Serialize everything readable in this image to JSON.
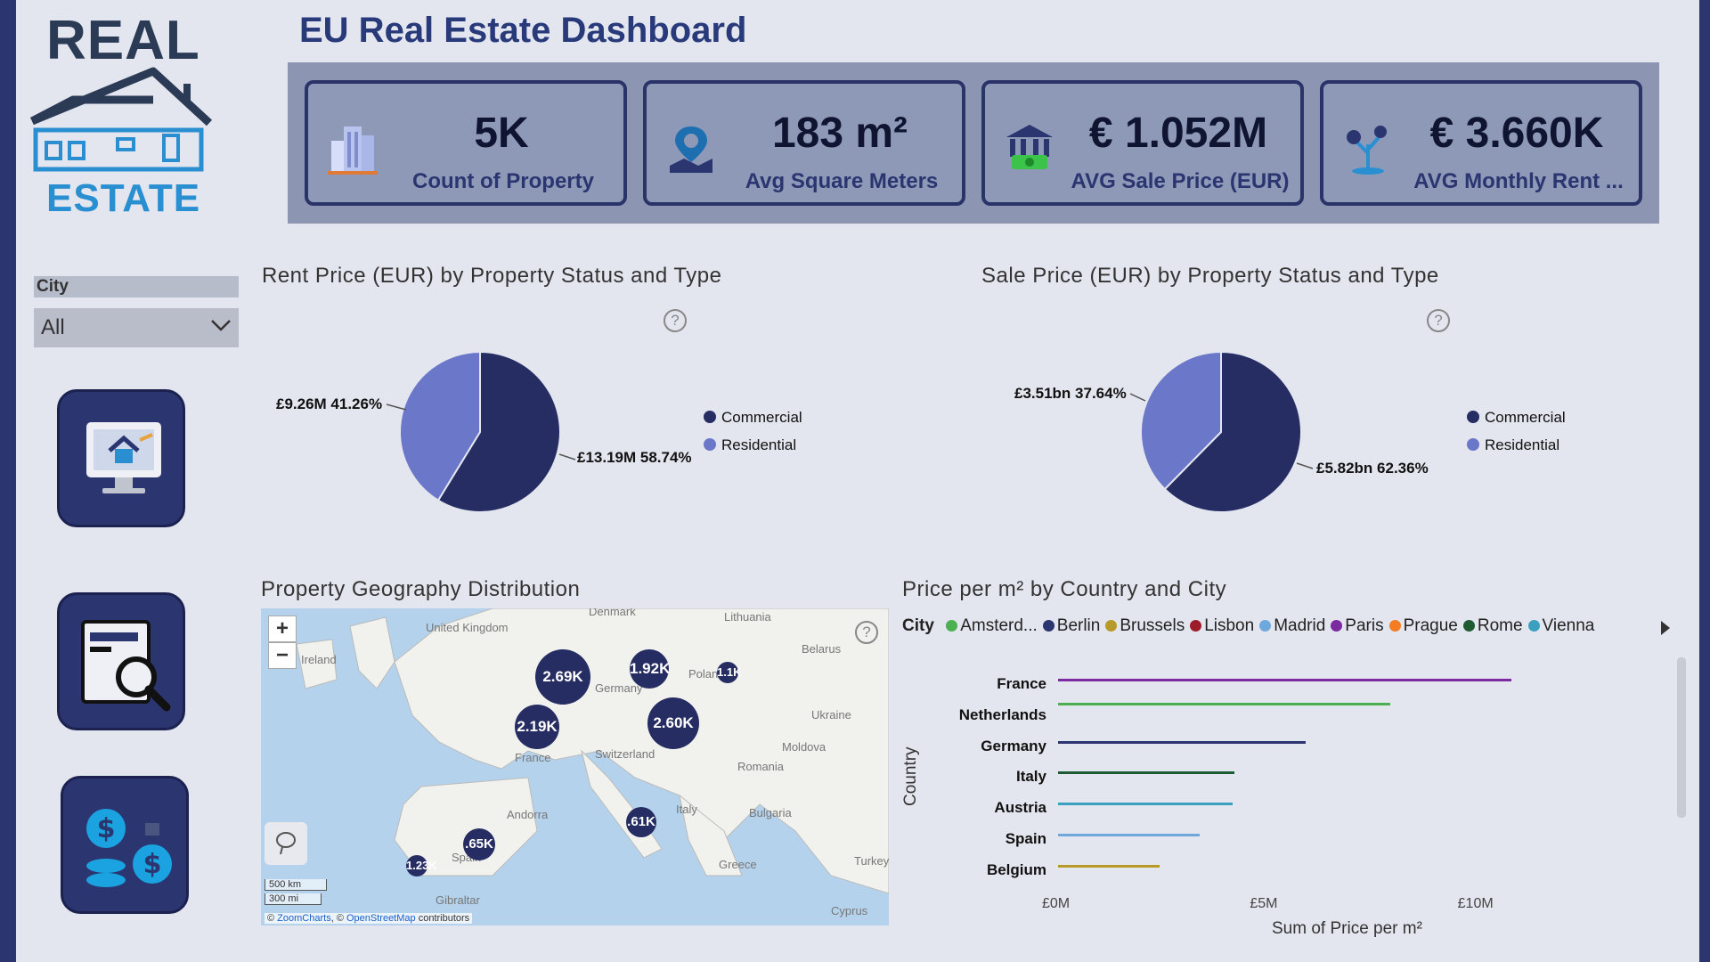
{
  "title": "EU Real Estate Dashboard",
  "logo": {
    "top": "REAL",
    "bottom": "ESTATE"
  },
  "kpis": [
    {
      "value": "5K",
      "label": "Count of Property",
      "icon": "building-icon"
    },
    {
      "value": "183 m²",
      "label": "Avg Square Meters",
      "icon": "location-pin-icon"
    },
    {
      "value": "€ 1.052M",
      "label": "AVG Sale Price (EUR)",
      "icon": "bank-icon"
    },
    {
      "value": "€ 3.660K",
      "label": "AVG Monthly Rent ...",
      "icon": "money-tree-icon"
    }
  ],
  "slicer": {
    "label": "City",
    "value": "All"
  },
  "nav": [
    "monitor-house-icon",
    "search-document-icon",
    "dollar-coins-icon"
  ],
  "rent_chart": {
    "title": "Rent Price (EUR) by Property Status and Type",
    "legend": [
      "Commercial",
      "Residential"
    ],
    "labels": {
      "residential": "£9.26M 41.26%",
      "commercial": "£13.19M 58.74%"
    }
  },
  "sale_chart": {
    "title": "Sale Price (EUR) by Property Status and Type",
    "legend": [
      "Commercial",
      "Residential"
    ],
    "labels": {
      "residential": "£3.51bn 37.64%",
      "commercial": "£5.82bn 62.36%"
    }
  },
  "map": {
    "title": "Property Geography Distribution",
    "zoom_in": "+",
    "zoom_out": "−",
    "bubbles": [
      "2.69K",
      "1.92K",
      "1.1K",
      "2.19K",
      "2.60K",
      ".61K",
      ".65K",
      "1.23K"
    ],
    "places": [
      "Denmark",
      "Lithuania",
      "United Kingdom",
      "Ireland",
      "Belarus",
      "Poland",
      "Germany",
      "Ukraine",
      "France",
      "Switzerland",
      "Moldova",
      "Romania",
      "Andorra",
      "Italy",
      "Bulgaria",
      "Spain",
      "Greece",
      "Turkey",
      "Gibraltar",
      "Cyprus"
    ],
    "scale_km": "500 km",
    "scale_mi": "300 mi",
    "attribution": {
      "prefix": "©",
      "zc": "ZoomCharts",
      "mid": ", ©",
      "osm": "OpenStreetMap",
      "suffix": "contributors"
    }
  },
  "price_chart": {
    "title": "Price per m² by Country and City",
    "legend_title": "City",
    "cities": [
      {
        "name": "Amsterd...",
        "color": "#4caf50"
      },
      {
        "name": "Berlin",
        "color": "#2b3570"
      },
      {
        "name": "Brussels",
        "color": "#b89a2a"
      },
      {
        "name": "Lisbon",
        "color": "#9c1c2a"
      },
      {
        "name": "Madrid",
        "color": "#6fa8dc"
      },
      {
        "name": "Paris",
        "color": "#7b2aa0"
      },
      {
        "name": "Prague",
        "color": "#f57c20"
      },
      {
        "name": "Rome",
        "color": "#1e5a32"
      },
      {
        "name": "Vienna",
        "color": "#3aa0c0"
      }
    ],
    "y_axis_title": "Country",
    "x_axis_title": "Sum of Price per m²",
    "x_ticks": [
      "£0M",
      "£5M",
      "£10M"
    ]
  },
  "chart_data": [
    {
      "type": "pie",
      "title": "Rent Price (EUR) by Property Status and Type",
      "categories": [
        "Commercial",
        "Residential"
      ],
      "values": [
        13.19,
        9.26
      ],
      "percents": [
        58.74,
        41.26
      ],
      "unit": "£M",
      "colors": [
        "#252d63",
        "#6b77c8"
      ]
    },
    {
      "type": "pie",
      "title": "Sale Price (EUR) by Property Status and Type",
      "categories": [
        "Commercial",
        "Residential"
      ],
      "values": [
        5.82,
        3.51
      ],
      "percents": [
        62.36,
        37.64
      ],
      "unit": "£bn",
      "colors": [
        "#252d63",
        "#6b77c8"
      ]
    },
    {
      "type": "bar",
      "title": "Price per m² by Country and City",
      "orientation": "horizontal",
      "categories": [
        "France",
        "Netherlands",
        "Germany",
        "Italy",
        "Austria",
        "Spain",
        "Belgium"
      ],
      "series_city": [
        "Paris",
        "Amsterd...",
        "Berlin",
        "Rome",
        "Vienna",
        "Madrid",
        "Brussels"
      ],
      "values": [
        10.9,
        8.0,
        5.95,
        4.25,
        4.2,
        3.4,
        2.45
      ],
      "colors": [
        "#7b2aa0",
        "#4caf50",
        "#2b3570",
        "#1e5a32",
        "#3aa0c0",
        "#6fa8dc",
        "#b89a2a"
      ],
      "xlabel": "Sum of Price per m²",
      "ylabel": "Country",
      "xlim": [
        0,
        12
      ],
      "x_ticks": [
        0,
        5,
        10
      ]
    }
  ]
}
